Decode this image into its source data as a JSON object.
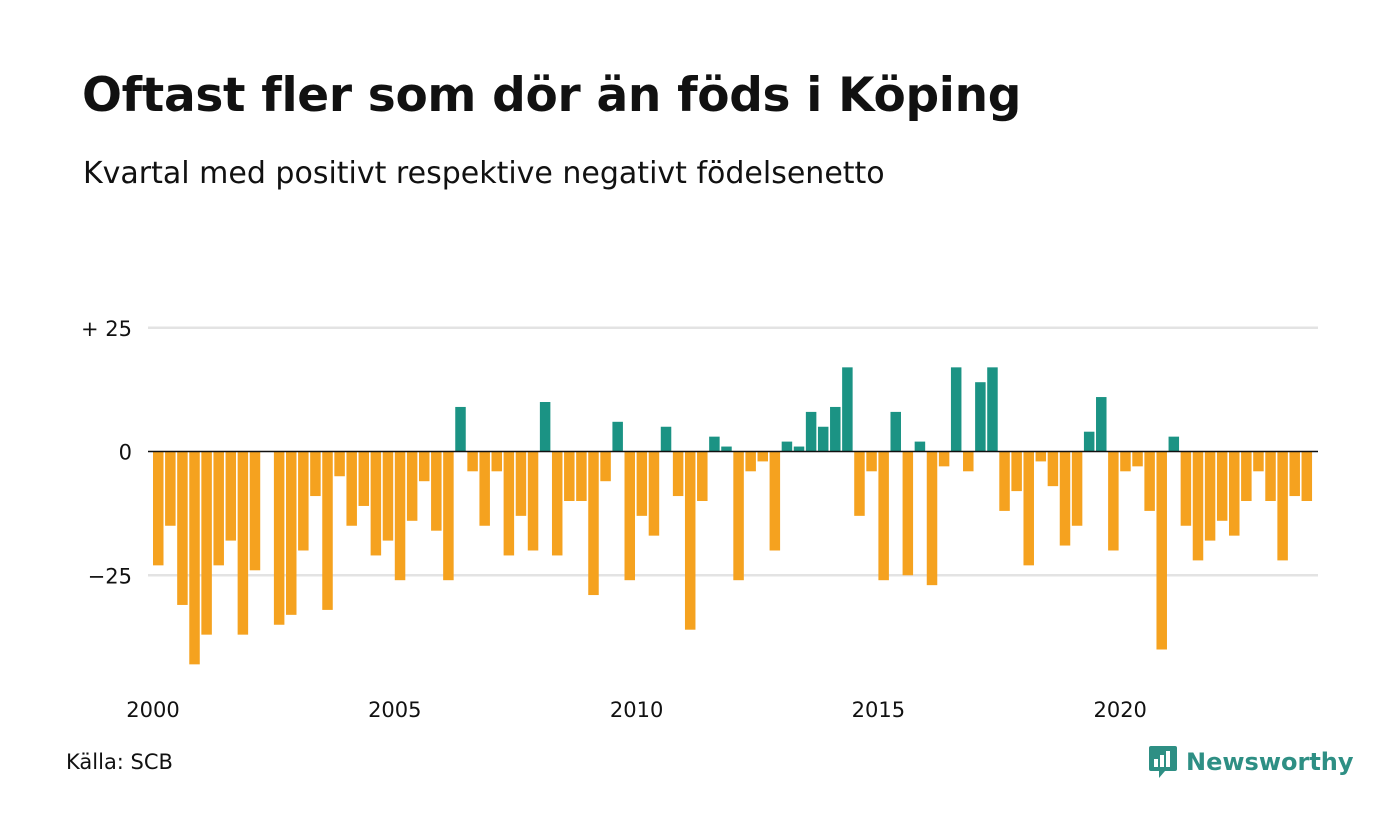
{
  "title": "Oftast fler som dör än föds i Köping",
  "subtitle": "Kvartal med positivt respektive negativt födelsenetto",
  "source": "Källa: SCB",
  "brand": "Newsworthy",
  "colors": {
    "positive": "#1b9384",
    "negative": "#f5a21f",
    "grid": "#e3e3e3",
    "zero_line": "#111111",
    "brand": "#2e8f84"
  },
  "chart_data": {
    "type": "bar",
    "title": "Oftast fler som dör än föds i Köping",
    "subtitle": "Kvartal med positivt respektive negativt födelsenetto",
    "xlabel": "",
    "ylabel": "",
    "x_ticks": [
      {
        "label": "2000",
        "year": 2000
      },
      {
        "label": "2005",
        "year": 2005
      },
      {
        "label": "2010",
        "year": 2010
      },
      {
        "label": "2015",
        "year": 2015
      },
      {
        "label": "2020",
        "year": 2020
      }
    ],
    "y_ticks": [
      {
        "value": 25,
        "label": "+ 25"
      },
      {
        "value": 0,
        "label": "0"
      },
      {
        "value": -25,
        "label": "−25"
      }
    ],
    "ylim": [
      -45,
      25
    ],
    "grid": true,
    "legend": "none",
    "start": "2000 Q1",
    "frequency": "quarterly",
    "values": [
      -23,
      -15,
      -31,
      -43,
      -37,
      -23,
      -18,
      -37,
      -24,
      0,
      -35,
      -33,
      -20,
      -9,
      -32,
      -5,
      -15,
      -11,
      -21,
      -18,
      -26,
      -14,
      -6,
      -16,
      -26,
      9,
      -4,
      -15,
      -4,
      -21,
      -13,
      -20,
      10,
      -21,
      -10,
      -10,
      -29,
      -6,
      6,
      -26,
      -13,
      -17,
      5,
      -9,
      -36,
      -10,
      3,
      1,
      -26,
      -4,
      -2,
      -20,
      2,
      1,
      8,
      5,
      9,
      17,
      -13,
      -4,
      -26,
      8,
      -25,
      2,
      -27,
      -3,
      17,
      -4,
      14,
      17,
      -12,
      -8,
      -23,
      -2,
      -7,
      -19,
      -15,
      4,
      11,
      -20,
      -4,
      -3,
      -12,
      -40,
      3,
      -15,
      -22,
      -18,
      -14,
      -17,
      -10,
      -4,
      -10,
      -22,
      -9,
      -10
    ]
  }
}
